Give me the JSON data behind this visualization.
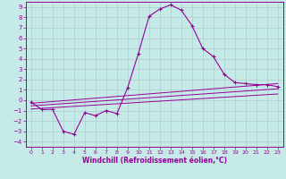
{
  "xlabel": "Windchill (Refroidissement éolien,°C)",
  "bg_color": "#c5eae8",
  "line_color": "#990099",
  "grid_color": "#b0cccc",
  "xlim": [
    -0.5,
    23.5
  ],
  "ylim": [
    -4.5,
    9.5
  ],
  "xticks": [
    0,
    1,
    2,
    3,
    4,
    5,
    6,
    7,
    8,
    9,
    10,
    11,
    12,
    13,
    14,
    15,
    16,
    17,
    18,
    19,
    20,
    21,
    22,
    23
  ],
  "yticks": [
    -4,
    -3,
    -2,
    -1,
    0,
    1,
    2,
    3,
    4,
    5,
    6,
    7,
    8,
    9
  ],
  "main_x": [
    0,
    1,
    2,
    3,
    4,
    5,
    6,
    7,
    8,
    9,
    10,
    11,
    12,
    13,
    14,
    15,
    16,
    17,
    18,
    19,
    20,
    21,
    22,
    23
  ],
  "main_y": [
    -0.2,
    -0.9,
    -0.9,
    -3.0,
    -3.3,
    -1.2,
    -1.5,
    -1.0,
    -1.3,
    1.2,
    4.5,
    8.1,
    8.8,
    9.2,
    8.7,
    7.2,
    5.0,
    4.2,
    2.5,
    1.7,
    1.6,
    1.5,
    1.5,
    1.3
  ],
  "line2_x": [
    0,
    23
  ],
  "line2_y": [
    -0.3,
    1.6
  ],
  "line3_x": [
    0,
    23
  ],
  "line3_y": [
    -0.55,
    1.1
  ],
  "line4_x": [
    0,
    23
  ],
  "line4_y": [
    -0.85,
    0.6
  ]
}
